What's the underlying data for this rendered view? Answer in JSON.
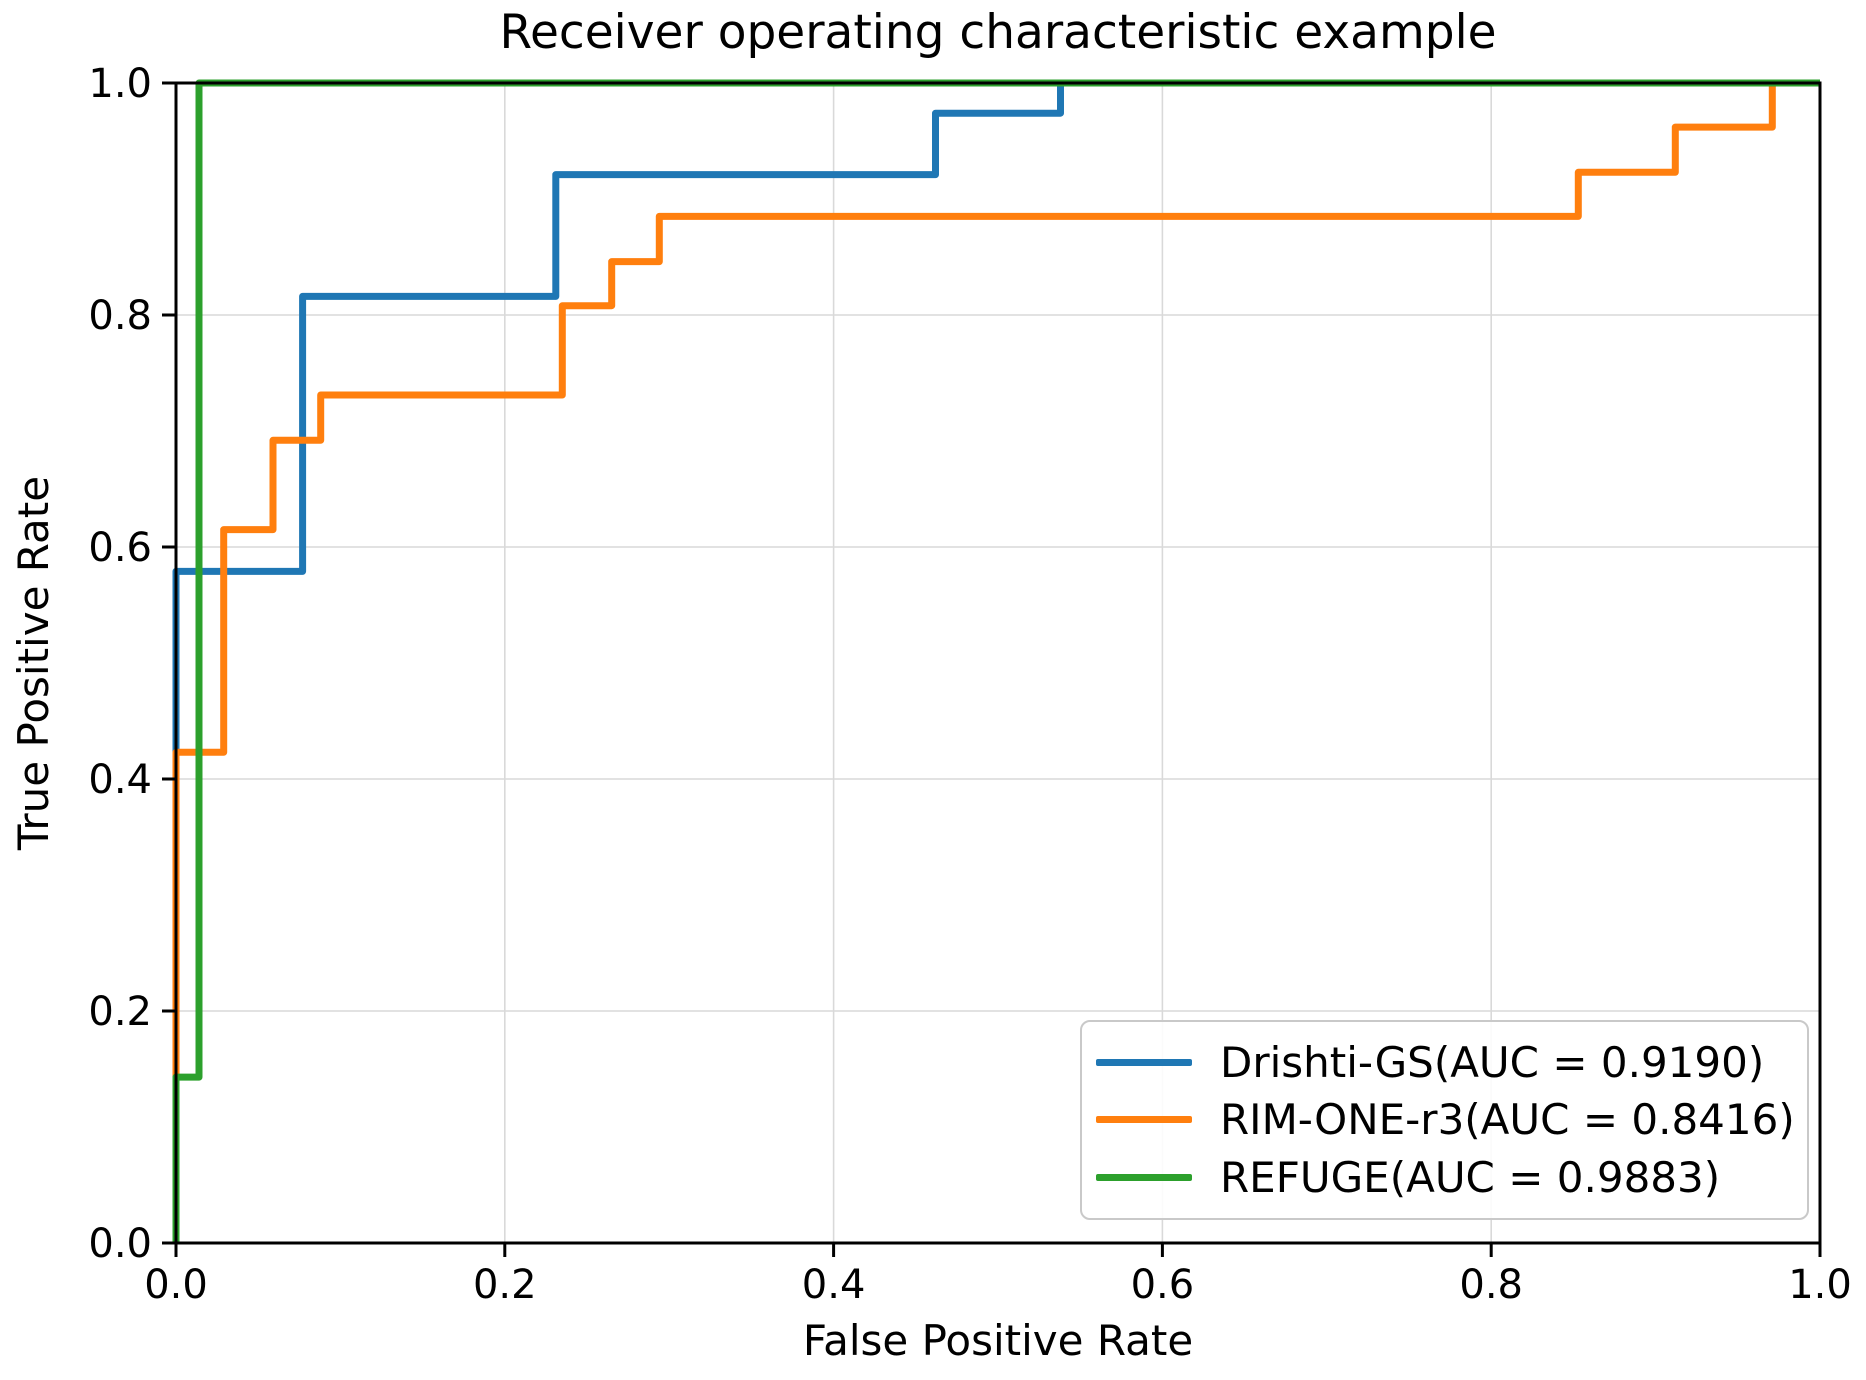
{
  "chart_data": {
    "type": "line",
    "subtype": "roc-step-curves",
    "title": "Receiver operating characteristic example",
    "xlabel": "False Positive Rate",
    "ylabel": "True Positive Rate",
    "xlim": [
      0.0,
      1.0
    ],
    "ylim": [
      0.0,
      1.0
    ],
    "xticks": [
      "0.0",
      "0.2",
      "0.4",
      "0.6",
      "0.8",
      "1.0"
    ],
    "yticks": [
      "0.0",
      "0.2",
      "0.4",
      "0.6",
      "0.8",
      "1.0"
    ],
    "grid": true,
    "grid_color": "#d9d9d9",
    "spine_color": "#000000",
    "legend_position": "lower right",
    "series": [
      {
        "name": "Drishti-GS(AUC = 0.9190)",
        "auc": 0.919,
        "color": "#1f77b4",
        "points": [
          [
            0.0,
            0.0
          ],
          [
            0.0,
            0.579
          ],
          [
            0.077,
            0.579
          ],
          [
            0.077,
            0.816
          ],
          [
            0.231,
            0.816
          ],
          [
            0.231,
            0.921
          ],
          [
            0.462,
            0.921
          ],
          [
            0.462,
            0.974
          ],
          [
            0.538,
            0.974
          ],
          [
            0.538,
            1.0
          ],
          [
            1.0,
            1.0
          ]
        ]
      },
      {
        "name": "RIM-ONE-r3(AUC = 0.8416)",
        "auc": 0.8416,
        "color": "#ff7f0e",
        "points": [
          [
            0.0,
            0.0
          ],
          [
            0.0,
            0.423
          ],
          [
            0.029,
            0.423
          ],
          [
            0.029,
            0.615
          ],
          [
            0.059,
            0.615
          ],
          [
            0.059,
            0.692
          ],
          [
            0.088,
            0.692
          ],
          [
            0.088,
            0.731
          ],
          [
            0.235,
            0.731
          ],
          [
            0.235,
            0.808
          ],
          [
            0.265,
            0.808
          ],
          [
            0.265,
            0.846
          ],
          [
            0.294,
            0.846
          ],
          [
            0.294,
            0.885
          ],
          [
            0.853,
            0.885
          ],
          [
            0.853,
            0.923
          ],
          [
            0.912,
            0.923
          ],
          [
            0.912,
            0.962
          ],
          [
            0.971,
            0.962
          ],
          [
            0.971,
            1.0
          ],
          [
            1.0,
            1.0
          ]
        ]
      },
      {
        "name": "REFUGE(AUC = 0.9883)",
        "auc": 0.9883,
        "color": "#2ca02c",
        "points": [
          [
            0.0,
            0.0
          ],
          [
            0.0,
            0.143
          ],
          [
            0.014,
            0.143
          ],
          [
            0.014,
            1.0
          ],
          [
            1.0,
            1.0
          ]
        ]
      }
    ]
  }
}
